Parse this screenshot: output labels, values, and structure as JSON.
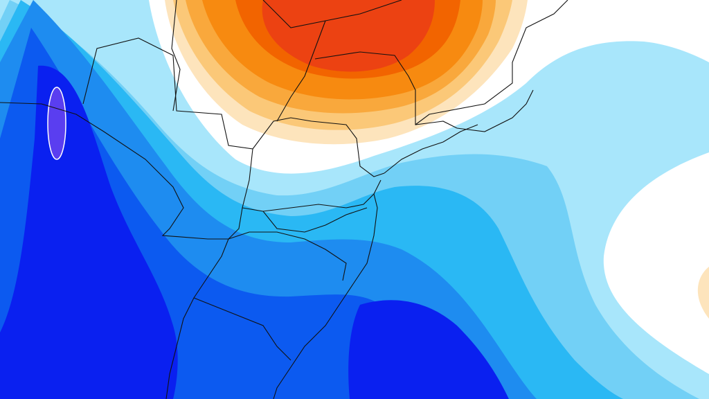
{
  "map": {
    "region": "",
    "colors": {
      "background": "#ffffff",
      "cold_1": "#a8e6fb",
      "cold_2": "#72d0f6",
      "cold_3": "#2ab8f4",
      "cold_4": "#1e8cf0",
      "cold_5": "#0c5af0",
      "cold_6": "#0a20f0",
      "cold_7": "#5a3ef0",
      "warm_1": "#fde4bc",
      "warm_2": "#fbc878",
      "warm_3": "#f9a83c",
      "warm_4": "#f78a10",
      "warm_5": "#f26400",
      "warm_6": "#ec4212",
      "borders": "#111111"
    }
  }
}
